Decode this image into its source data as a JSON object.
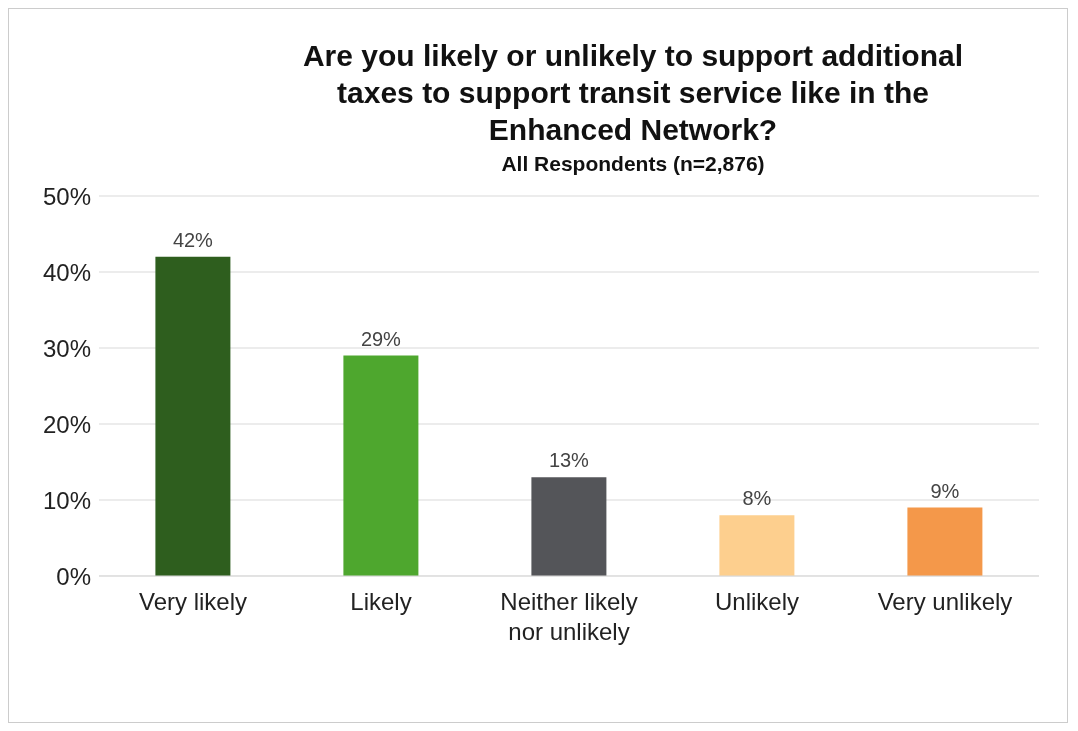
{
  "chart_data": {
    "type": "bar",
    "title": "Are you likely or unlikely to support additional taxes to support transit service like in the Enhanced Network?",
    "subtitle": "All Respondents (n=2,876)",
    "categories": [
      "Very likely",
      "Likely",
      "Neither likely nor unlikely",
      "Unlikely",
      "Very unlikely"
    ],
    "values": [
      42,
      29,
      13,
      8,
      9
    ],
    "value_labels": [
      "42%",
      "29%",
      "13%",
      "8%",
      "9%"
    ],
    "colors": [
      "#2e5e1e",
      "#4ea72e",
      "#545559",
      "#fdcf8e",
      "#f4984a"
    ],
    "ylim": [
      0,
      50
    ],
    "yticks": [
      {
        "value": 0,
        "label": "0%"
      },
      {
        "value": 10,
        "label": "10%"
      },
      {
        "value": 20,
        "label": "20%"
      },
      {
        "value": 30,
        "label": "30%"
      },
      {
        "value": 40,
        "label": "40%"
      },
      {
        "value": 50,
        "label": "50%"
      }
    ],
    "grid": "y"
  }
}
